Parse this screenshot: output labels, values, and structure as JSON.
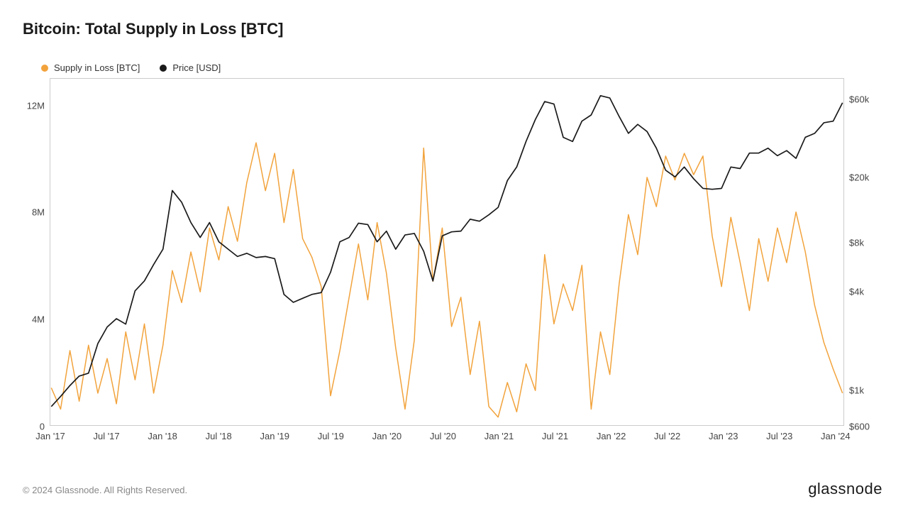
{
  "title": "Bitcoin: Total Supply in Loss [BTC]",
  "legend": [
    {
      "label": "Supply in Loss [BTC]",
      "color": "#f2a33c"
    },
    {
      "label": "Price [USD]",
      "color": "#1a1a1a"
    }
  ],
  "footer": "© 2024 Glassnode. All Rights Reserved.",
  "brand": "glassnode",
  "chart": {
    "type": "line-dual-axis",
    "background_color": "#ffffff",
    "border_color": "#cccccc",
    "axis_font_size": 13,
    "axis_font_color": "#444444",
    "title_font_size": 22,
    "title_font_weight": 600,
    "x": {
      "type": "time-index",
      "min": 0,
      "max": 85,
      "tick_indices": [
        0,
        6,
        12,
        18,
        24,
        30,
        36,
        42,
        48,
        54,
        60,
        66,
        72,
        78,
        84
      ],
      "tick_labels": [
        "Jan '17",
        "Jul '17",
        "Jan '18",
        "Jul '18",
        "Jan '19",
        "Jul '19",
        "Jan '20",
        "Jul '20",
        "Jan '21",
        "Jul '21",
        "Jan '22",
        "Jul '22",
        "Jan '23",
        "Jul '23",
        "Jan '24"
      ]
    },
    "y_left": {
      "label": "",
      "scale": "linear",
      "min": 0,
      "max": 13000000,
      "ticks": [
        0,
        4000000,
        8000000,
        12000000
      ],
      "tick_labels": [
        "0",
        "4M",
        "8M",
        "12M"
      ]
    },
    "y_right": {
      "label": "",
      "scale": "log",
      "min": 600,
      "max": 80000,
      "ticks": [
        600,
        1000,
        4000,
        8000,
        20000,
        60000
      ],
      "tick_labels": [
        "$600",
        "$1k",
        "$4k",
        "$8k",
        "$20k",
        "$60k"
      ]
    },
    "series": [
      {
        "name": "Supply in Loss [BTC]",
        "axis": "left",
        "color": "#f2a33c",
        "line_width": 1.5,
        "data": [
          1400000,
          600000,
          2800000,
          900000,
          3000000,
          1200000,
          2500000,
          800000,
          3500000,
          1700000,
          3800000,
          1200000,
          3000000,
          5800000,
          4600000,
          6500000,
          5000000,
          7400000,
          6200000,
          8200000,
          6900000,
          9100000,
          10600000,
          8800000,
          10200000,
          7600000,
          9600000,
          7000000,
          6300000,
          5200000,
          1100000,
          2800000,
          4800000,
          6800000,
          4700000,
          7600000,
          5700000,
          2900000,
          600000,
          3200000,
          10400000,
          5400000,
          7400000,
          3700000,
          4800000,
          1900000,
          3900000,
          700000,
          300000,
          1600000,
          500000,
          2300000,
          1300000,
          6400000,
          3800000,
          5300000,
          4300000,
          6000000,
          600000,
          3500000,
          1900000,
          5300000,
          7900000,
          6400000,
          9300000,
          8200000,
          10100000,
          9200000,
          10200000,
          9400000,
          10100000,
          7100000,
          5200000,
          7800000,
          6100000,
          4300000,
          7000000,
          5400000,
          7400000,
          6100000,
          8000000,
          6500000,
          4500000,
          3100000,
          2100000,
          1200000
        ]
      },
      {
        "name": "Price [USD]",
        "axis": "right",
        "color": "#1a1a1a",
        "line_width": 1.7,
        "data": [
          780,
          900,
          1050,
          1200,
          1250,
          1900,
          2400,
          2700,
          2500,
          4000,
          4600,
          5800,
          7200,
          16500,
          14000,
          10500,
          8500,
          10500,
          8000,
          7200,
          6500,
          6800,
          6400,
          6500,
          6300,
          3800,
          3400,
          3600,
          3800,
          3900,
          5200,
          8000,
          8500,
          10400,
          10200,
          8000,
          9300,
          7200,
          8800,
          9000,
          7000,
          4600,
          8700,
          9200,
          9300,
          11000,
          10700,
          11700,
          13000,
          19000,
          23000,
          33000,
          45000,
          58000,
          56000,
          35000,
          33000,
          44000,
          48000,
          63000,
          61000,
          47000,
          37000,
          42000,
          38000,
          30000,
          22000,
          20000,
          23000,
          19500,
          17000,
          16800,
          17000,
          23000,
          22500,
          28000,
          28000,
          30000,
          27000,
          29000,
          26000,
          35000,
          37000,
          43000,
          44000,
          57000
        ]
      }
    ]
  }
}
